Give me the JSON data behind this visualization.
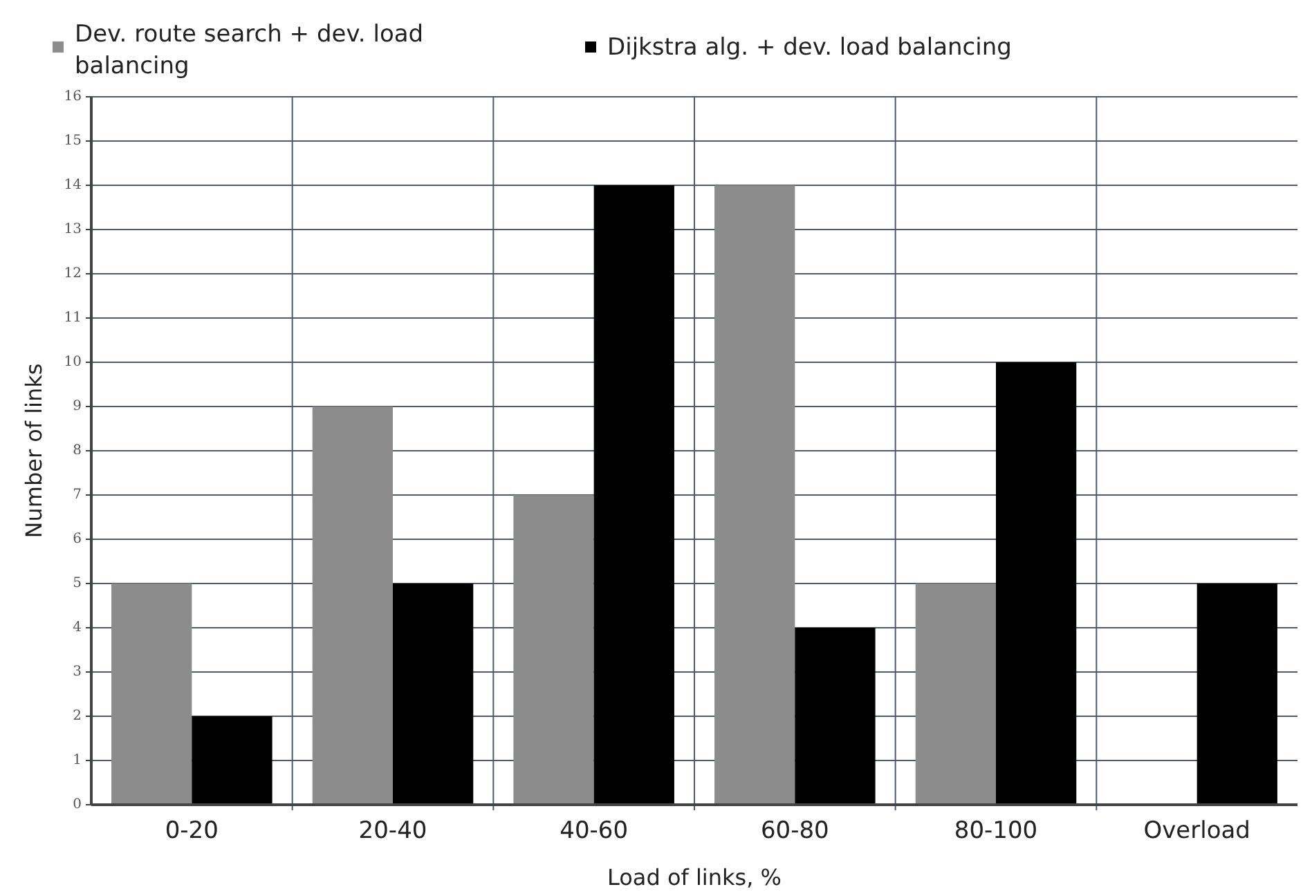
{
  "chart_data": {
    "type": "bar",
    "xlabel": "Load of links, %",
    "ylabel": "Number of links",
    "categories": [
      "0-20",
      "20-40",
      "40-60",
      "60-80",
      "80-100",
      "Overload"
    ],
    "series": [
      {
        "name": "Dev. route search + dev. load balancing",
        "color": "#8c8c8c",
        "values": [
          5,
          9,
          7,
          14,
          5,
          0
        ]
      },
      {
        "name": "Dijkstra alg. + dev. load balancing",
        "color": "#000000",
        "values": [
          2,
          5,
          14,
          4,
          10,
          5
        ]
      }
    ],
    "ylim": [
      0,
      16
    ],
    "yticks": [
      0,
      1,
      2,
      3,
      4,
      5,
      6,
      7,
      8,
      9,
      10,
      11,
      12,
      13,
      14,
      15,
      16
    ],
    "grid": true,
    "legend": "top left"
  }
}
